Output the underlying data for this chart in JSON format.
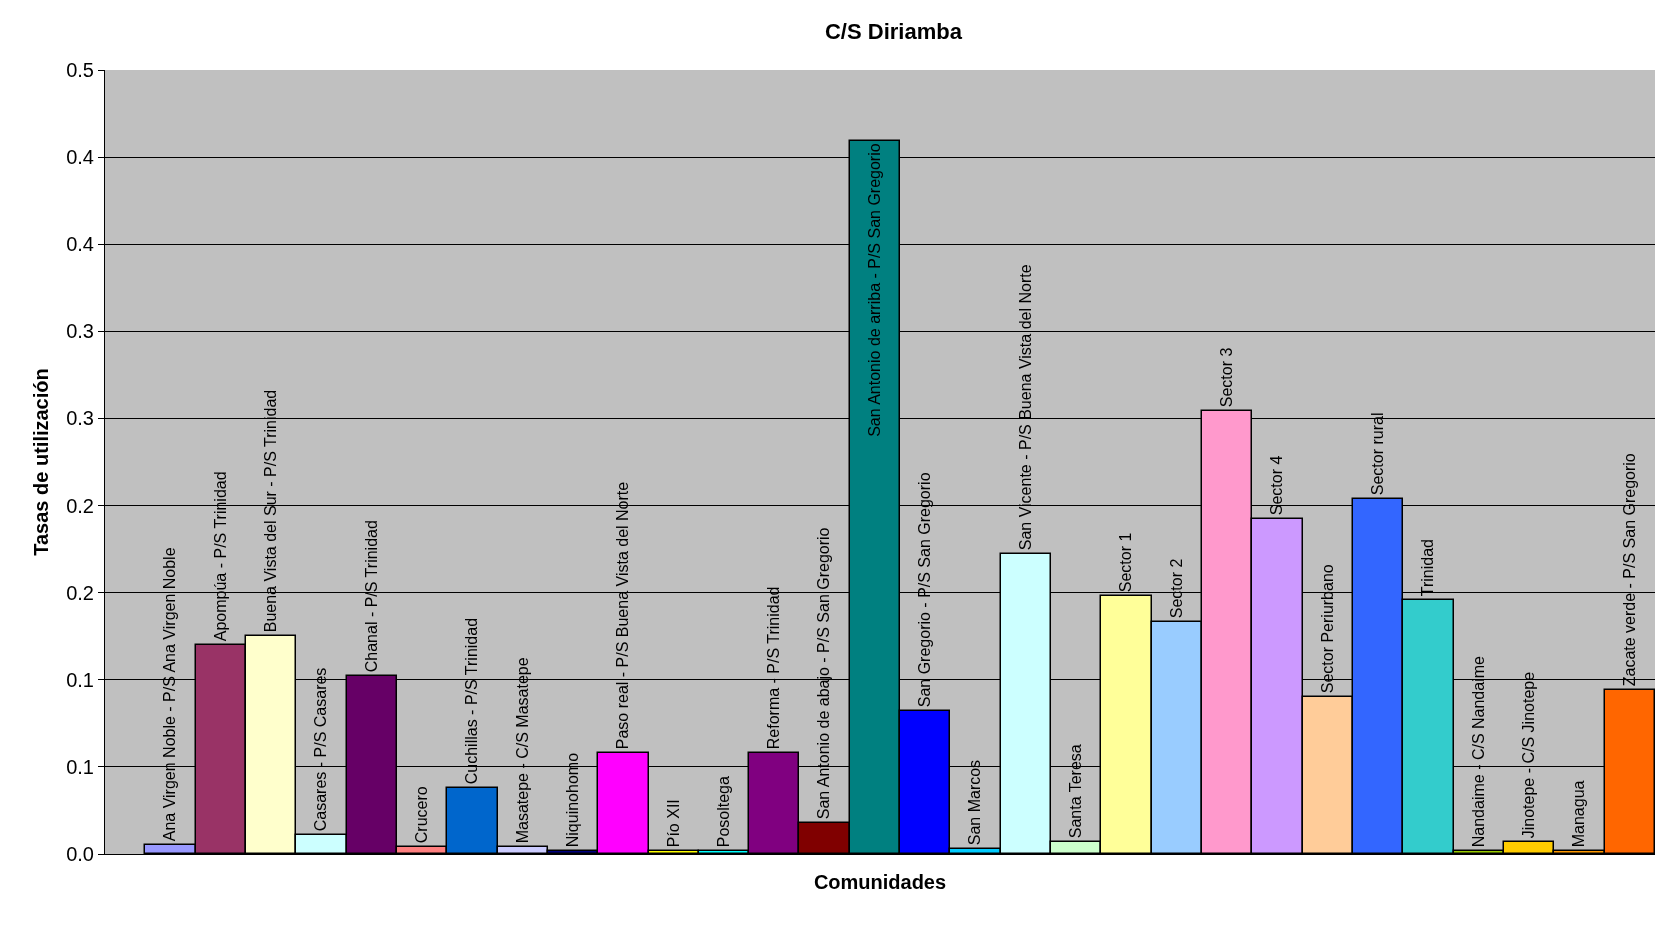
{
  "chart_data": {
    "type": "bar",
    "title": "C/S Diriamba",
    "xlabel": "Comunidades",
    "ylabel": "Tasas de utilización",
    "categories": [
      "Ana Virgen Noble - P/S Ana Virgen Noble",
      "Apompúa - P/S Trinidad",
      "Buena Vista del Sur - P/S Trinidad",
      "Casares - P/S Casares",
      "Chanal - P/S Trinidad",
      "Crucero",
      "Cuchillas - P/S Trinidad",
      "Masatepe - C/S Masatepe",
      "Niquinohomo",
      "Paso real - P/S Buena Vista del Norte",
      "Pío XII",
      "Posoltega",
      "Reforma - P/S Trinidad",
      "San Antonio de abajo - P/S San Gregorio",
      "San Antonio de arriba - P/S San Gregorio",
      "San Gregorio - P/S San Gregorio",
      "San Marcos",
      "San Vicente - P/S Buena Vista del Norte",
      "Santa Teresa",
      "Sector 1",
      "Sector 2",
      "Sector 3",
      "Sector 4",
      "Sector Periurbano",
      "Sector rural",
      "Trinidad",
      "Nandaime - C/S Nandaime",
      "Jinotepe - C/S Jinotepe",
      "Managua",
      "Zacate verde - P/S San Gregorio"
    ],
    "values": [
      0.005,
      0.12,
      0.125,
      0.011,
      0.102,
      0.004,
      0.038,
      0.004,
      0.002,
      0.058,
      0.002,
      0.002,
      0.058,
      0.018,
      0.409,
      0.082,
      0.003,
      0.172,
      0.007,
      0.148,
      0.133,
      0.254,
      0.192,
      0.09,
      0.204,
      0.146,
      0.002,
      0.007,
      0.002,
      0.094
    ],
    "colors": [
      "#9999ff",
      "#993366",
      "#ffffcc",
      "#ccffff",
      "#660066",
      "#ff8080",
      "#0066cc",
      "#ccccff",
      "#000080",
      "#ff00ff",
      "#ffff00",
      "#00ffff",
      "#800080",
      "#800000",
      "#008080",
      "#0000ff",
      "#00ccff",
      "#ccffff",
      "#ccffcc",
      "#ffff99",
      "#99ccff",
      "#ff99cc",
      "#cc99ff",
      "#ffcc99",
      "#3366ff",
      "#33cccc",
      "#99cc00",
      "#ffcc00",
      "#ff9900",
      "#ff6600"
    ],
    "ylim": [
      0,
      0.45
    ],
    "yticks": [
      {
        "value": 0,
        "label": "0.0"
      },
      {
        "value": 0.05,
        "label": "0.1"
      },
      0.1,
      {
        "value": 0.15,
        "label": "0.2"
      },
      0.2,
      {
        "value": 0.25,
        "label": "0.3"
      },
      0.3,
      {
        "value": 0.35,
        "label": "0.4"
      },
      0.4,
      {
        "value": 0.45,
        "label": "0.5"
      }
    ],
    "grid": "y",
    "legend": false,
    "tick_labels": "y"
  }
}
